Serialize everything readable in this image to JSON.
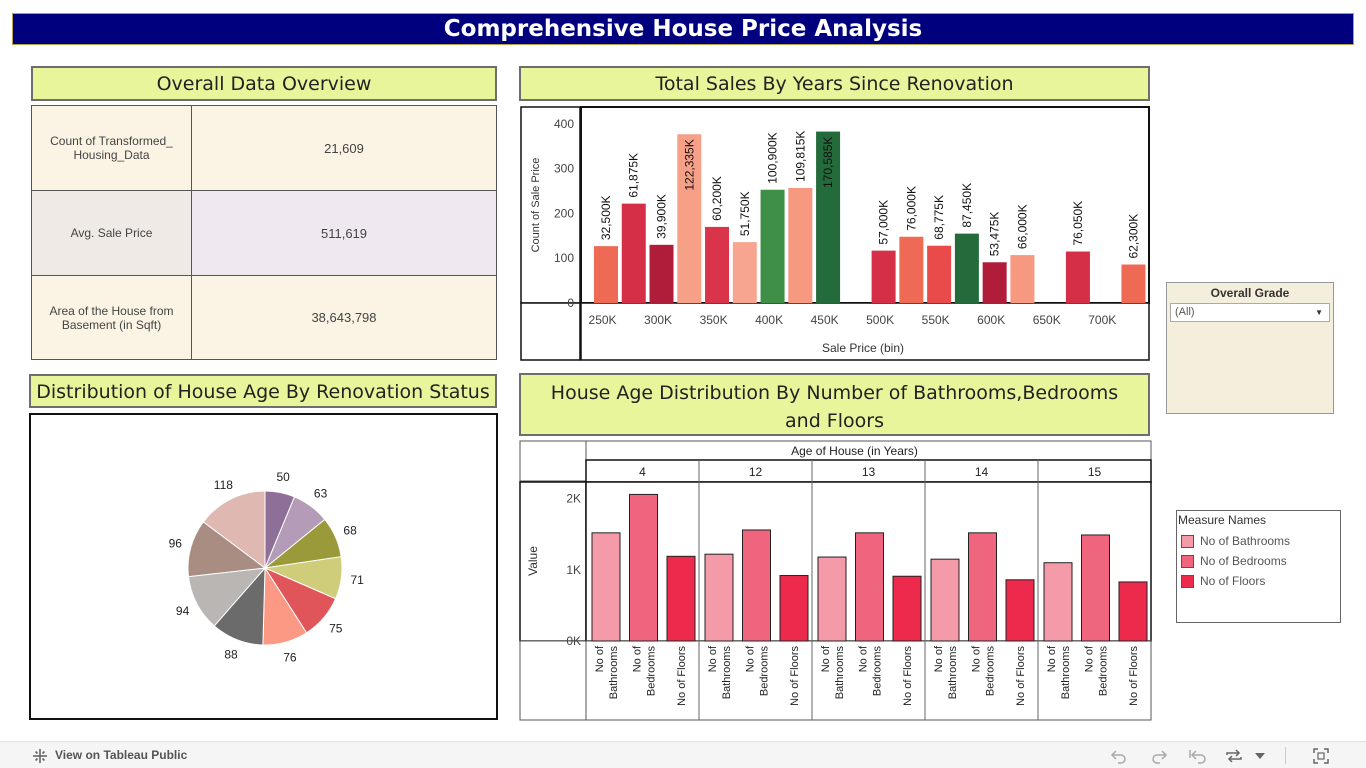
{
  "title": "Comprehensive House Price Analysis",
  "overview": {
    "title": "Overall Data Overview",
    "rows": [
      {
        "label": "Count of Transformed_ Housing_Data",
        "value": "21,609"
      },
      {
        "label": "Avg. Sale Price",
        "value": "511,619"
      },
      {
        "label": "Area of the House from Basement (in Sqft)",
        "value": "38,643,798"
      }
    ]
  },
  "sales_panel": {
    "title": "Total Sales By Years Since Renovation"
  },
  "pie_panel": {
    "title": "Distribution of House Age By Renovation Status"
  },
  "age_panel": {
    "title": "House Age Distribution By Number of Bathrooms,Bedrooms and Floors"
  },
  "filter": {
    "title": "Overall Grade",
    "value": "(All)"
  },
  "legend": {
    "title": "Measure Names",
    "items": [
      {
        "label": "No of Bathrooms",
        "color": "#f49aa8"
      },
      {
        "label": "No of Bedrooms",
        "color": "#f0657e"
      },
      {
        "label": "No of Floors",
        "color": "#ee2a4c"
      }
    ]
  },
  "footer": {
    "view_label": "View on Tableau Public",
    "icons": [
      "undo-icon",
      "redo-icon",
      "revert-icon",
      "refresh-icon",
      "dropdown-icon",
      "fullscreen-icon"
    ]
  },
  "chart_data": [
    {
      "type": "bar",
      "xlabel": "Sale Price (bin)",
      "ylabel": "Count of Sale Price",
      "ylim": [
        0,
        420
      ],
      "yticks": [
        0,
        100,
        200,
        300,
        400
      ],
      "categories": [
        "250K",
        "300K",
        "350K",
        "400K",
        "450K",
        "500K",
        "550K",
        "600K",
        "650K",
        "700K"
      ],
      "bars": [
        {
          "x": 245,
          "value": 127,
          "label": "32,500K",
          "color": "#ee6a55"
        },
        {
          "x": 270,
          "value": 222,
          "label": "61,875K",
          "color": "#d42f46"
        },
        {
          "x": 295,
          "value": 130,
          "label": "39,900K",
          "color": "#b01d3b"
        },
        {
          "x": 320,
          "value": 377,
          "label": "122,335K",
          "color": "#f7a088"
        },
        {
          "x": 345,
          "value": 170,
          "label": "60,200K",
          "color": "#d9344a"
        },
        {
          "x": 370,
          "value": 136,
          "label": "51,750K",
          "color": "#f7a590"
        },
        {
          "x": 395,
          "value": 253,
          "label": "100,900K",
          "color": "#3f8f47"
        },
        {
          "x": 420,
          "value": 257,
          "label": "109,815K",
          "color": "#f79880"
        },
        {
          "x": 445,
          "value": 383,
          "label": "170,585K",
          "color": "#236b3a"
        },
        {
          "x": 495,
          "value": 117,
          "label": "57,000K",
          "color": "#d42f46"
        },
        {
          "x": 520,
          "value": 148,
          "label": "76,000K",
          "color": "#ee6a55"
        },
        {
          "x": 545,
          "value": 128,
          "label": "68,775K",
          "color": "#e94b4b"
        },
        {
          "x": 570,
          "value": 155,
          "label": "87,450K",
          "color": "#236b3a"
        },
        {
          "x": 595,
          "value": 91,
          "label": "53,475K",
          "color": "#b01d3b"
        },
        {
          "x": 620,
          "value": 107,
          "label": "66,000K",
          "color": "#f79880"
        },
        {
          "x": 670,
          "value": 115,
          "label": "76,050K",
          "color": "#d42f46"
        },
        {
          "x": 720,
          "value": 86,
          "label": "62,300K",
          "color": "#ee6a55"
        }
      ]
    },
    {
      "type": "pie",
      "slices": [
        {
          "label": "50",
          "value": 50,
          "color": "#8e6f97"
        },
        {
          "label": "63",
          "value": 63,
          "color": "#b49cb8"
        },
        {
          "label": "68",
          "value": 68,
          "color": "#9b9a3a"
        },
        {
          "label": "71",
          "value": 71,
          "color": "#d0cd7a"
        },
        {
          "label": "75",
          "value": 75,
          "color": "#e05559"
        },
        {
          "label": "76",
          "value": 76,
          "color": "#fb9985"
        },
        {
          "label": "88",
          "value": 88,
          "color": "#6b6b6b"
        },
        {
          "label": "94",
          "value": 94,
          "color": "#bab6b3"
        },
        {
          "label": "96",
          "value": 96,
          "color": "#a98c82"
        },
        {
          "label": "118",
          "value": 118,
          "color": "#dfb8b2"
        }
      ]
    },
    {
      "type": "bar",
      "title": "Age of House (in Years)",
      "ylabel": "Value",
      "ylim": [
        0,
        2150
      ],
      "yticks": [
        {
          "v": 0,
          "label": "0K"
        },
        {
          "v": 1000,
          "label": "1K"
        },
        {
          "v": 2000,
          "label": "2K"
        }
      ],
      "categories": [
        "No of Bathrooms",
        "No of Bedrooms",
        "No of Floors"
      ],
      "category_lines": [
        [
          "No of",
          "Bathrooms"
        ],
        [
          "No of",
          "Bedrooms"
        ],
        [
          "No of Floors"
        ]
      ],
      "colors": [
        "#f49aa8",
        "#f0657e",
        "#ee2a4c"
      ],
      "groups": [
        {
          "age": "4",
          "values": [
            1520,
            2060,
            1190
          ]
        },
        {
          "age": "12",
          "values": [
            1220,
            1560,
            920
          ]
        },
        {
          "age": "13",
          "values": [
            1180,
            1520,
            910
          ]
        },
        {
          "age": "14",
          "values": [
            1150,
            1520,
            860
          ]
        },
        {
          "age": "15",
          "values": [
            1100,
            1490,
            830
          ]
        }
      ]
    }
  ]
}
